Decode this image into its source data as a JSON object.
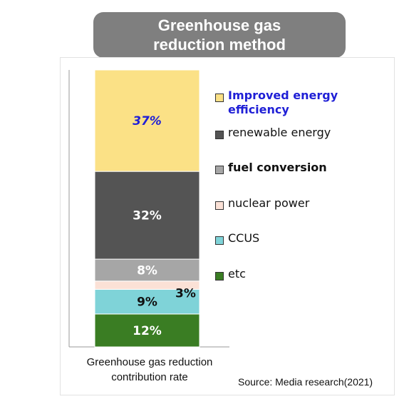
{
  "title_lines": [
    "Greenhouse gas",
    "reduction method"
  ],
  "chart_data": {
    "type": "bar",
    "stacked": true,
    "categories": [
      "Greenhouse gas reduction contribution rate"
    ],
    "xlabel_lines": [
      "Greenhouse gas reduction",
      "contribution rate"
    ],
    "series": [
      {
        "name": "etc",
        "values": [
          12
        ],
        "label": "12%",
        "color": "#3a7d23"
      },
      {
        "name": "CCUS",
        "values": [
          9
        ],
        "label": "9%",
        "color": "#7fd3d8"
      },
      {
        "name": "nuclear power",
        "values": [
          3
        ],
        "label": "3%",
        "color": "#fbe1d6"
      },
      {
        "name": "fuel conversion",
        "values": [
          8
        ],
        "label": "8%",
        "color": "#a6a6a6"
      },
      {
        "name": "renewable energy",
        "values": [
          32
        ],
        "label": "32%",
        "color": "#545454"
      },
      {
        "name": "Improved energy efficiency",
        "values": [
          37
        ],
        "label": "37%",
        "color": "#fbe186"
      }
    ],
    "ylim": [
      0,
      101
    ],
    "legend_position": "right"
  },
  "legend": [
    {
      "label_lines": [
        "Improved energy",
        "efficiency"
      ],
      "color": "#fbe186",
      "text_color": "#1f1fd6",
      "bold": true
    },
    {
      "label_lines": [
        "renewable energy"
      ],
      "color": "#545454",
      "text_color": "#111111",
      "bold": false
    },
    {
      "label_lines": [
        "fuel conversion"
      ],
      "color": "#a6a6a6",
      "text_color": "#111111",
      "bold": true
    },
    {
      "label_lines": [
        "nuclear power"
      ],
      "color": "#fbe1d6",
      "text_color": "#111111",
      "bold": false
    },
    {
      "label_lines": [
        "CCUS"
      ],
      "color": "#7fd3d8",
      "text_color": "#111111",
      "bold": false
    },
    {
      "label_lines": [
        "etc"
      ],
      "color": "#3a7d23",
      "text_color": "#111111",
      "bold": false
    }
  ],
  "source": "Source: Media research(2021)"
}
